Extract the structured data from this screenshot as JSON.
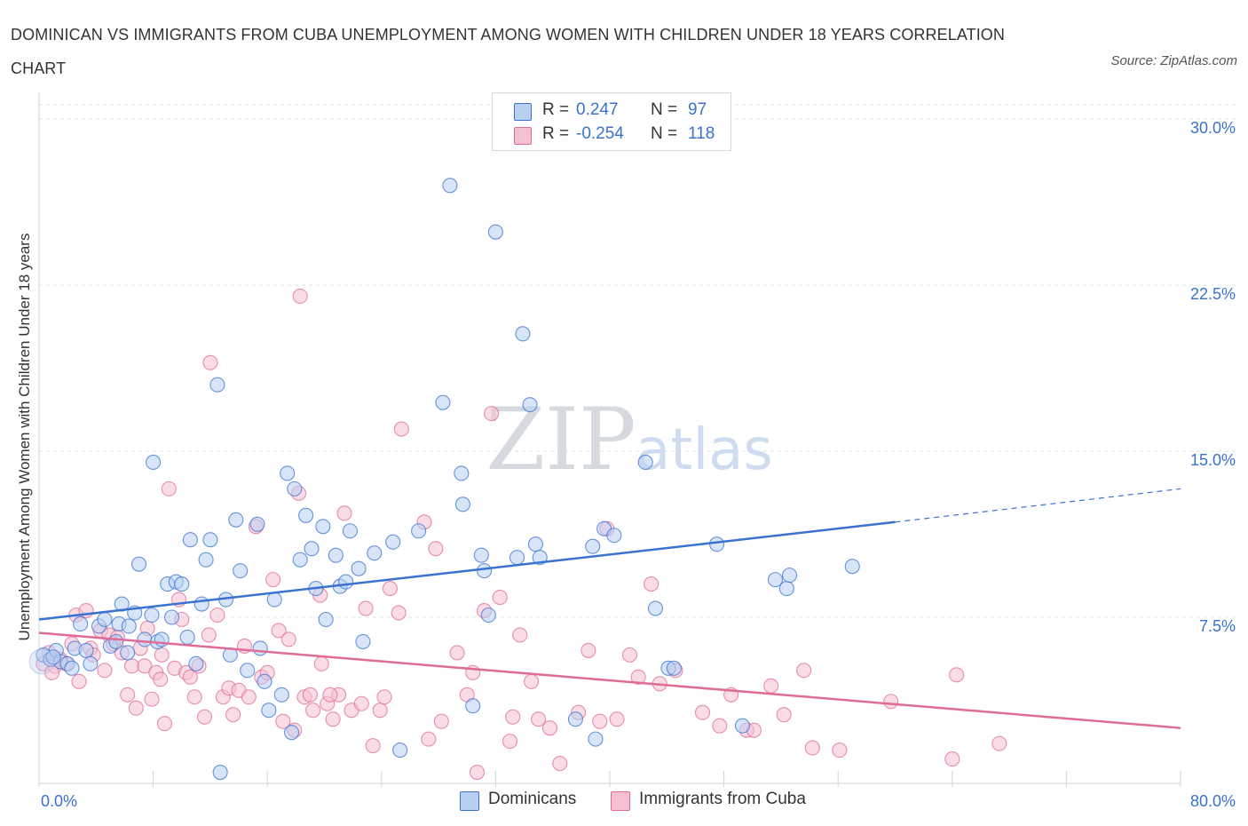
{
  "header": {
    "title": "DOMINICAN VS IMMIGRANTS FROM CUBA UNEMPLOYMENT AMONG WOMEN WITH CHILDREN UNDER 18 YEARS CORRELATION CHART",
    "source": "Source: ZipAtlas.com"
  },
  "watermark": {
    "zip": "ZIP",
    "atlas": "atlas"
  },
  "legend": {
    "r_label": "R =",
    "n_label": "N =",
    "rows": [
      {
        "name": "Dominicans",
        "r": "0.247",
        "n": "97"
      },
      {
        "name": "Immigrants from Cuba",
        "r": "-0.254",
        "n": "118"
      }
    ]
  },
  "colors": {
    "blue": "#3a72d0",
    "blue_fill": "#b8cff2",
    "pink": "#e06b96",
    "pink_fill": "#f5bfd2",
    "grid": "#dde3ea",
    "axis_text": "#3a72d0"
  },
  "chart_data": {
    "type": "scatter",
    "title": "DOMINICAN VS IMMIGRANTS FROM CUBA UNEMPLOYMENT AMONG WOMEN WITH CHILDREN UNDER 18 YEARS CORRELATION CHART",
    "xlabel": "",
    "ylabel": "Unemployment Among Women with Children Under 18 years",
    "xlim": [
      0,
      80
    ],
    "ylim": [
      0,
      30
    ],
    "x_tick_labels": [
      "0.0%",
      "80.0%"
    ],
    "y_ticks": [
      {
        "value": 7.5,
        "label": "7.5%"
      },
      {
        "value": 15,
        "label": "15.0%"
      },
      {
        "value": 22.5,
        "label": "22.5%"
      },
      {
        "value": 30,
        "label": "30.0%"
      }
    ],
    "grid": true,
    "legend_position": "top-center",
    "series": [
      {
        "name": "Dominicans",
        "color": "#3a72d0",
        "trend": {
          "x0": 0,
          "y0": 7.4,
          "x1": 60,
          "y1": 11.8,
          "dashed_to_x": 80,
          "dashed_to_y": 13.3
        },
        "points": [
          [
            0.3,
            5.8
          ],
          [
            0.8,
            5.6
          ],
          [
            1.2,
            6.0
          ],
          [
            1.5,
            5.5
          ],
          [
            2.0,
            5.4
          ],
          [
            2.5,
            6.1
          ],
          [
            2.9,
            7.2
          ],
          [
            3.3,
            6.0
          ],
          [
            4.2,
            7.1
          ],
          [
            4.6,
            7.4
          ],
          [
            5.0,
            6.2
          ],
          [
            5.4,
            6.4
          ],
          [
            5.6,
            7.2
          ],
          [
            5.8,
            8.1
          ],
          [
            6.3,
            7.1
          ],
          [
            6.7,
            7.7
          ],
          [
            7.0,
            9.9
          ],
          [
            7.4,
            6.5
          ],
          [
            7.9,
            7.6
          ],
          [
            8.0,
            14.5
          ],
          [
            8.3,
            6.4
          ],
          [
            8.6,
            6.5
          ],
          [
            9.0,
            9.0
          ],
          [
            9.3,
            7.5
          ],
          [
            9.6,
            9.1
          ],
          [
            10.0,
            9.0
          ],
          [
            10.4,
            6.6
          ],
          [
            10.6,
            11.0
          ],
          [
            11.0,
            5.4
          ],
          [
            11.4,
            8.1
          ],
          [
            11.7,
            10.1
          ],
          [
            12.0,
            11.0
          ],
          [
            12.5,
            18.0
          ],
          [
            13.1,
            8.3
          ],
          [
            13.4,
            5.8
          ],
          [
            13.8,
            11.9
          ],
          [
            14.1,
            9.6
          ],
          [
            14.6,
            5.1
          ],
          [
            15.3,
            11.7
          ],
          [
            15.5,
            6.1
          ],
          [
            15.8,
            4.6
          ],
          [
            16.1,
            3.3
          ],
          [
            16.5,
            8.3
          ],
          [
            17.0,
            4.0
          ],
          [
            17.4,
            14.0
          ],
          [
            17.7,
            2.3
          ],
          [
            17.9,
            13.3
          ],
          [
            18.3,
            10.1
          ],
          [
            18.7,
            12.1
          ],
          [
            19.1,
            10.6
          ],
          [
            19.4,
            8.8
          ],
          [
            19.9,
            11.6
          ],
          [
            20.1,
            7.4
          ],
          [
            20.8,
            10.3
          ],
          [
            21.1,
            8.9
          ],
          [
            21.5,
            9.1
          ],
          [
            21.8,
            11.4
          ],
          [
            22.4,
            9.7
          ],
          [
            22.7,
            6.4
          ],
          [
            23.5,
            10.4
          ],
          [
            24.8,
            10.9
          ],
          [
            25.3,
            1.5
          ],
          [
            26.6,
            11.4
          ],
          [
            28.3,
            17.2
          ],
          [
            28.8,
            27.0
          ],
          [
            29.6,
            14.0
          ],
          [
            29.7,
            12.6
          ],
          [
            30.4,
            3.5
          ],
          [
            31.0,
            10.3
          ],
          [
            31.2,
            9.6
          ],
          [
            31.5,
            7.6
          ],
          [
            32.0,
            24.9
          ],
          [
            33.5,
            10.2
          ],
          [
            33.9,
            20.3
          ],
          [
            34.4,
            17.1
          ],
          [
            34.8,
            10.8
          ],
          [
            35.1,
            10.2
          ],
          [
            37.6,
            2.9
          ],
          [
            38.8,
            10.7
          ],
          [
            39.0,
            2.0
          ],
          [
            39.6,
            11.5
          ],
          [
            40.3,
            11.2
          ],
          [
            42.5,
            14.5
          ],
          [
            43.2,
            7.9
          ],
          [
            44.1,
            5.2
          ],
          [
            44.5,
            5.2
          ],
          [
            47.5,
            10.8
          ],
          [
            49.3,
            2.6
          ],
          [
            51.6,
            9.2
          ],
          [
            52.4,
            8.8
          ],
          [
            52.6,
            9.4
          ],
          [
            57.0,
            9.8
          ],
          [
            12.7,
            0.5
          ],
          [
            6.2,
            5.9
          ],
          [
            3.6,
            5.4
          ],
          [
            1.0,
            5.7
          ],
          [
            2.3,
            5.2
          ]
        ]
      },
      {
        "name": "Immigrants from Cuba",
        "color": "#e06b96",
        "trend": {
          "x0": 0,
          "y0": 6.8,
          "x1": 80,
          "y1": 2.5
        },
        "points": [
          [
            0.3,
            5.4
          ],
          [
            0.7,
            5.9
          ],
          [
            1.1,
            5.3
          ],
          [
            1.5,
            5.6
          ],
          [
            1.9,
            5.4
          ],
          [
            2.3,
            6.3
          ],
          [
            2.6,
            7.6
          ],
          [
            2.8,
            4.6
          ],
          [
            3.3,
            7.8
          ],
          [
            3.6,
            6.1
          ],
          [
            3.8,
            5.8
          ],
          [
            4.3,
            6.9
          ],
          [
            4.6,
            5.1
          ],
          [
            4.9,
            6.7
          ],
          [
            5.2,
            6.3
          ],
          [
            5.5,
            6.6
          ],
          [
            5.8,
            5.9
          ],
          [
            6.2,
            4.0
          ],
          [
            6.5,
            5.3
          ],
          [
            6.8,
            3.4
          ],
          [
            7.1,
            6.1
          ],
          [
            7.4,
            5.3
          ],
          [
            7.6,
            7.0
          ],
          [
            7.9,
            3.8
          ],
          [
            8.2,
            5.0
          ],
          [
            8.6,
            5.8
          ],
          [
            8.8,
            2.7
          ],
          [
            9.1,
            13.3
          ],
          [
            9.5,
            5.2
          ],
          [
            9.8,
            8.3
          ],
          [
            10.0,
            7.4
          ],
          [
            10.3,
            5.0
          ],
          [
            10.6,
            4.8
          ],
          [
            10.9,
            3.9
          ],
          [
            11.2,
            5.3
          ],
          [
            11.6,
            3.0
          ],
          [
            11.9,
            6.7
          ],
          [
            12.0,
            19.0
          ],
          [
            12.5,
            7.6
          ],
          [
            12.9,
            3.9
          ],
          [
            13.3,
            4.3
          ],
          [
            13.6,
            3.1
          ],
          [
            14.0,
            4.2
          ],
          [
            14.4,
            6.2
          ],
          [
            14.7,
            3.9
          ],
          [
            15.2,
            11.6
          ],
          [
            15.6,
            4.8
          ],
          [
            16.0,
            5.0
          ],
          [
            16.4,
            9.2
          ],
          [
            16.8,
            6.9
          ],
          [
            17.1,
            2.8
          ],
          [
            17.5,
            6.5
          ],
          [
            17.9,
            2.4
          ],
          [
            18.2,
            13.1
          ],
          [
            18.3,
            22.0
          ],
          [
            18.6,
            3.9
          ],
          [
            19.0,
            4.0
          ],
          [
            19.2,
            3.3
          ],
          [
            19.7,
            8.5
          ],
          [
            19.8,
            5.4
          ],
          [
            20.2,
            3.6
          ],
          [
            20.6,
            2.9
          ],
          [
            21.0,
            4.0
          ],
          [
            21.4,
            12.2
          ],
          [
            21.9,
            3.3
          ],
          [
            22.6,
            3.6
          ],
          [
            22.9,
            7.9
          ],
          [
            23.4,
            1.7
          ],
          [
            23.9,
            3.3
          ],
          [
            24.2,
            3.9
          ],
          [
            24.6,
            8.8
          ],
          [
            25.2,
            7.7
          ],
          [
            25.4,
            16.0
          ],
          [
            27.0,
            11.8
          ],
          [
            27.3,
            2.0
          ],
          [
            27.8,
            10.6
          ],
          [
            28.2,
            2.8
          ],
          [
            29.3,
            5.9
          ],
          [
            30.0,
            4.0
          ],
          [
            30.4,
            5.0
          ],
          [
            30.7,
            0.5
          ],
          [
            31.2,
            7.8
          ],
          [
            31.7,
            16.7
          ],
          [
            32.3,
            8.4
          ],
          [
            33.2,
            3.0
          ],
          [
            33.7,
            6.7
          ],
          [
            34.5,
            4.6
          ],
          [
            35.0,
            2.9
          ],
          [
            35.8,
            2.5
          ],
          [
            36.5,
            0.9
          ],
          [
            37.8,
            3.2
          ],
          [
            38.5,
            6.0
          ],
          [
            39.3,
            2.8
          ],
          [
            39.8,
            11.5
          ],
          [
            40.5,
            2.9
          ],
          [
            41.4,
            5.8
          ],
          [
            42.0,
            4.8
          ],
          [
            42.9,
            9.0
          ],
          [
            43.5,
            4.5
          ],
          [
            44.6,
            5.1
          ],
          [
            46.5,
            3.2
          ],
          [
            47.7,
            2.6
          ],
          [
            48.5,
            4.0
          ],
          [
            49.6,
            2.4
          ],
          [
            50.1,
            2.4
          ],
          [
            51.3,
            4.4
          ],
          [
            52.2,
            3.1
          ],
          [
            53.6,
            5.1
          ],
          [
            54.2,
            1.6
          ],
          [
            56.1,
            1.5
          ],
          [
            59.7,
            3.7
          ],
          [
            64.0,
            1.1
          ],
          [
            64.3,
            4.9
          ],
          [
            67.3,
            1.8
          ],
          [
            33.0,
            1.9
          ],
          [
            20.4,
            4.0
          ],
          [
            8.5,
            4.7
          ],
          [
            0.9,
            5.0
          ]
        ]
      }
    ]
  }
}
